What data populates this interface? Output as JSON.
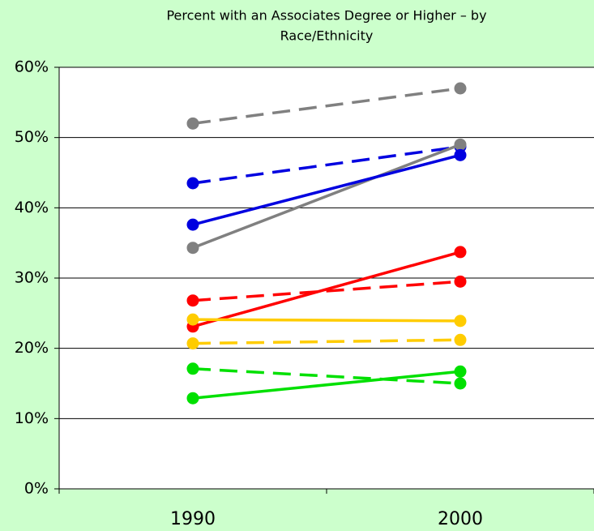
{
  "chart_data": {
    "type": "line",
    "title": [
      "Percent with an Associates Degree or Higher – by",
      "Race/Ethnicity"
    ],
    "categories": [
      "1990",
      "2000"
    ],
    "series": [
      {
        "color": "#808080",
        "dashed": true,
        "values": [
          52,
          57
        ]
      },
      {
        "color": "#0000e0",
        "dashed": true,
        "values": [
          43.5,
          48.7
        ]
      },
      {
        "color": "#808080",
        "dashed": false,
        "values": [
          34.3,
          49
        ]
      },
      {
        "color": "#0000e0",
        "dashed": false,
        "values": [
          37.6,
          47.5
        ]
      },
      {
        "color": "#ff0000",
        "dashed": false,
        "values": [
          23.1,
          33.7
        ]
      },
      {
        "color": "#ff0000",
        "dashed": true,
        "values": [
          26.8,
          29.5
        ]
      },
      {
        "color": "#ffcc00",
        "dashed": false,
        "values": [
          24.1,
          23.9
        ]
      },
      {
        "color": "#ffcc00",
        "dashed": true,
        "values": [
          20.7,
          21.2
        ]
      },
      {
        "color": "#00e000",
        "dashed": true,
        "values": [
          17.1,
          15
        ]
      },
      {
        "color": "#00e000",
        "dashed": false,
        "values": [
          12.9,
          16.7
        ]
      }
    ],
    "ylim": [
      0,
      60
    ],
    "yticks": [
      {
        "value": 0,
        "label": "0%"
      },
      {
        "value": 10,
        "label": "10%"
      },
      {
        "value": 20,
        "label": "20%"
      },
      {
        "value": 30,
        "label": "30%"
      },
      {
        "value": 40,
        "label": "40%"
      },
      {
        "value": 50,
        "label": "50%"
      },
      {
        "value": 60,
        "label": "60%"
      }
    ],
    "grid": true
  }
}
